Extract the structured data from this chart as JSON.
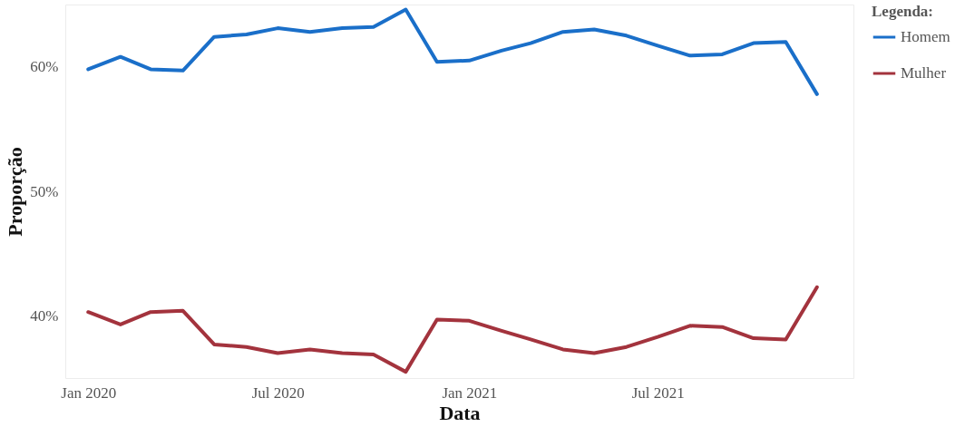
{
  "chart_data": {
    "type": "line",
    "xlabel": "Data",
    "ylabel": "Proporção",
    "legend_title": "Legenda:",
    "x": [
      "2020-01",
      "2020-02",
      "2020-03",
      "2020-04",
      "2020-05",
      "2020-06",
      "2020-07",
      "2020-08",
      "2020-09",
      "2020-10",
      "2020-11",
      "2020-12",
      "2021-01",
      "2021-02",
      "2021-03",
      "2021-04",
      "2021-05",
      "2021-06",
      "2021-07",
      "2021-08",
      "2021-09",
      "2021-10",
      "2021-11",
      "2021-12"
    ],
    "series": [
      {
        "name": "Homem",
        "color": "#1a6fc9",
        "values": [
          59.8,
          60.8,
          59.8,
          59.7,
          62.4,
          62.6,
          63.1,
          62.8,
          63.1,
          63.2,
          64.6,
          60.4,
          60.5,
          61.3,
          61.9,
          62.8,
          63.0,
          62.5,
          61.7,
          60.9,
          61.0,
          61.9,
          62.0,
          57.8
        ]
      },
      {
        "name": "Mulher",
        "color": "#a3333d",
        "values": [
          40.3,
          39.3,
          40.3,
          40.4,
          37.7,
          37.5,
          37.0,
          37.3,
          37.0,
          36.9,
          35.5,
          39.7,
          39.6,
          38.8,
          38.1,
          37.3,
          37.0,
          37.5,
          38.3,
          39.2,
          39.1,
          38.2,
          38.1,
          42.3
        ]
      }
    ],
    "xticks": [
      {
        "value": "2020-01",
        "label": "Jan 2020"
      },
      {
        "value": "2020-07",
        "label": "Jul 2020"
      },
      {
        "value": "2021-01",
        "label": "Jan 2021"
      },
      {
        "value": "2021-07",
        "label": "Jul 2021"
      }
    ],
    "xlim": [
      "2019-12-10",
      "2022-01-05"
    ],
    "ylim": [
      35,
      65
    ],
    "yticks": [
      {
        "value": 40,
        "label": "40%"
      },
      {
        "value": 50,
        "label": "50%"
      },
      {
        "value": 60,
        "label": "60%"
      }
    ],
    "grid": false,
    "legend": "right",
    "marker": "none",
    "line_style": "solid"
  }
}
